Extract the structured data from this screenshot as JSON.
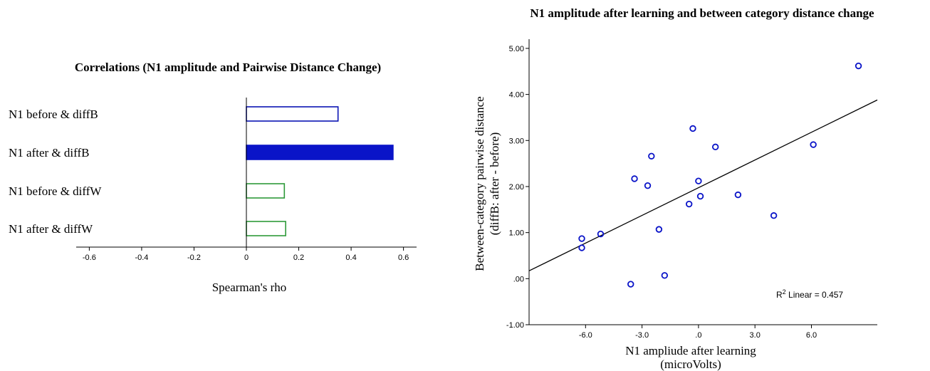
{
  "chart_data": [
    {
      "type": "bar",
      "orientation": "horizontal",
      "title": "Correlations (N1 amplitude and Pairwise Distance Change)",
      "xlabel": "Spearman's rho",
      "ylabel": "",
      "categories": [
        "N1 before & diffB",
        "N1 after & diffB",
        "N1 before & diffW",
        "N1 after & diffW"
      ],
      "values": [
        0.35,
        0.56,
        0.145,
        0.15
      ],
      "bar_styles": [
        "outline",
        "filled",
        "outline",
        "outline"
      ],
      "bar_colors": [
        "#0a14b4",
        "#0a14c8",
        "#2e9a3a",
        "#2e9a3a"
      ],
      "xlim": [
        -0.65,
        0.65
      ],
      "xticks": [
        -0.6,
        -0.4,
        -0.2,
        0,
        0.2,
        0.4,
        0.6
      ],
      "xtick_labels": [
        "-0.6",
        "-0.4",
        "-0.2",
        "0",
        "0.2",
        "0.4",
        "0.6"
      ],
      "grid": false,
      "legend": "none"
    },
    {
      "type": "scatter",
      "title": "N1 amplitude after learning and between category distance change",
      "xlabel_lines": [
        "N1 ampliude after learning",
        "(microVolts)"
      ],
      "ylabel_lines": [
        "Between-category pairwise distance",
        "(diffB: after - before)"
      ],
      "xlim": [
        -9.0,
        9.5
      ],
      "ylim": [
        -1.0,
        5.2
      ],
      "xticks": [
        -6.0,
        -3.0,
        0.0,
        3.0,
        6.0
      ],
      "xtick_labels": [
        "-6.0",
        "-3.0",
        ".0",
        "3.0",
        "6.0"
      ],
      "yticks": [
        -1.0,
        0.0,
        1.0,
        2.0,
        3.0,
        4.0,
        5.0
      ],
      "ytick_labels": [
        "-1.00",
        ".00",
        "1.00",
        "2.00",
        "3.00",
        "4.00",
        "5.00"
      ],
      "points": [
        {
          "x": -6.2,
          "y": 0.87
        },
        {
          "x": -6.2,
          "y": 0.67
        },
        {
          "x": -5.2,
          "y": 0.97
        },
        {
          "x": -3.6,
          "y": -0.12
        },
        {
          "x": -3.4,
          "y": 2.17
        },
        {
          "x": -2.7,
          "y": 2.02
        },
        {
          "x": -2.5,
          "y": 2.66
        },
        {
          "x": -2.1,
          "y": 1.07
        },
        {
          "x": -1.8,
          "y": 0.07
        },
        {
          "x": -0.5,
          "y": 1.62
        },
        {
          "x": -0.3,
          "y": 3.26
        },
        {
          "x": 0.0,
          "y": 2.12
        },
        {
          "x": 0.1,
          "y": 1.79
        },
        {
          "x": 0.9,
          "y": 2.86
        },
        {
          "x": 2.1,
          "y": 1.82
        },
        {
          "x": 4.0,
          "y": 1.37
        },
        {
          "x": 6.1,
          "y": 2.91
        },
        {
          "x": 8.5,
          "y": 4.62
        }
      ],
      "fit_line": {
        "x": [
          -9.0,
          9.5
        ],
        "y": [
          0.17,
          3.88
        ]
      },
      "annotation": {
        "prefix": "R",
        "sup": "2",
        "text": " Linear = 0.457"
      },
      "marker_color": "#0a14c8",
      "line_color": "#000000",
      "grid": false,
      "legend": "none"
    }
  ]
}
